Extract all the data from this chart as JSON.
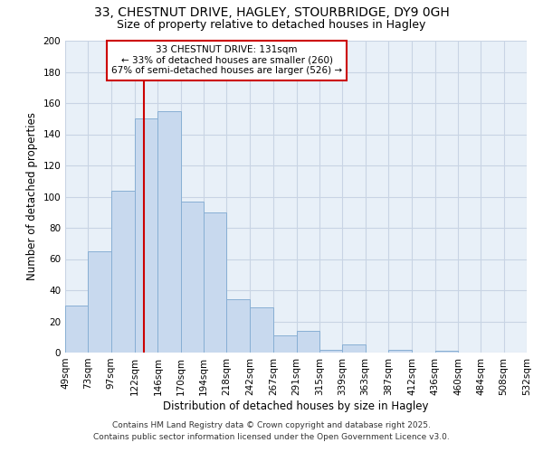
{
  "title_line1": "33, CHESTNUT DRIVE, HAGLEY, STOURBRIDGE, DY9 0GH",
  "title_line2": "Size of property relative to detached houses in Hagley",
  "xlabel": "Distribution of detached houses by size in Hagley",
  "ylabel": "Number of detached properties",
  "bar_color": "#c8d9ee",
  "bar_edge_color": "#88afd4",
  "vline_color": "#cc0000",
  "vline_x": 131,
  "bin_edges": [
    49,
    73,
    97,
    122,
    146,
    170,
    194,
    218,
    242,
    267,
    291,
    315,
    339,
    363,
    387,
    412,
    436,
    460,
    484,
    508,
    532
  ],
  "bin_labels": [
    "49sqm",
    "73sqm",
    "97sqm",
    "122sqm",
    "146sqm",
    "170sqm",
    "194sqm",
    "218sqm",
    "242sqm",
    "267sqm",
    "291sqm",
    "315sqm",
    "339sqm",
    "363sqm",
    "387sqm",
    "412sqm",
    "436sqm",
    "460sqm",
    "484sqm",
    "508sqm",
    "532sqm"
  ],
  "bar_heights": [
    30,
    65,
    104,
    150,
    155,
    97,
    90,
    34,
    29,
    11,
    14,
    2,
    5,
    0,
    2,
    0,
    1,
    0,
    0,
    0
  ],
  "ylim": [
    0,
    200
  ],
  "yticks": [
    0,
    20,
    40,
    60,
    80,
    100,
    120,
    140,
    160,
    180,
    200
  ],
  "annotation_title": "33 CHESTNUT DRIVE: 131sqm",
  "annotation_line2": "← 33% of detached houses are smaller (260)",
  "annotation_line3": "67% of semi-detached houses are larger (526) →",
  "annotation_box_color": "#ffffff",
  "annotation_box_edge": "#cc0000",
  "footer_line1": "Contains HM Land Registry data © Crown copyright and database right 2025.",
  "footer_line2": "Contains public sector information licensed under the Open Government Licence v3.0.",
  "bg_color": "#ffffff",
  "plot_bg_color": "#e8f0f8",
  "grid_color": "#c8d4e4",
  "title_fontsize": 10,
  "subtitle_fontsize": 9,
  "label_fontsize": 8.5,
  "tick_fontsize": 7.5,
  "annotation_fontsize": 7.5,
  "footer_fontsize": 6.5
}
